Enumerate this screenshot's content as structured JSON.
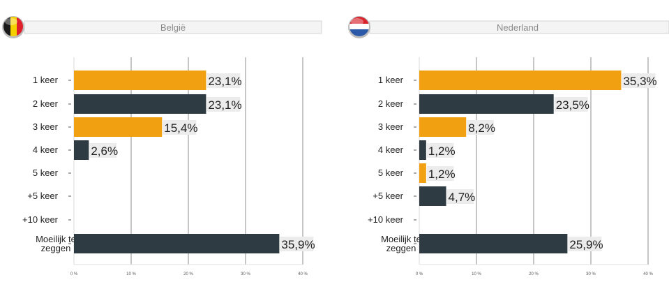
{
  "chart_data": [
    {
      "type": "bar",
      "orientation": "horizontal",
      "title": "België",
      "flag": "belgium-flag-icon",
      "categories": [
        "1 keer",
        "2 keer",
        "3 keer",
        "4 keer",
        "5 keer",
        "+5 keer",
        "+10 keer",
        "Moeilijk te zeggen"
      ],
      "values": [
        23.1,
        23.1,
        15.4,
        2.6,
        null,
        null,
        null,
        35.9
      ],
      "value_labels": [
        "23,1%",
        "23,1%",
        "15,4%",
        "2,6%",
        "",
        "",
        "",
        "35,9%"
      ],
      "xlim": [
        0,
        40
      ],
      "xticks": [
        "0 %",
        "10 %",
        "20 %",
        "30 %",
        "40 %"
      ],
      "grid": true,
      "colors": [
        "#f0a010",
        "#2f3b42",
        "#f0a010",
        "#2f3b42",
        "#f0a010",
        "#2f3b42",
        "#f0a010",
        "#2f3b42"
      ]
    },
    {
      "type": "bar",
      "orientation": "horizontal",
      "title": "Nederland",
      "flag": "netherlands-flag-icon",
      "categories": [
        "1 keer",
        "2 keer",
        "3 keer",
        "4 keer",
        "5 keer",
        "+5 keer",
        "+10 keer",
        "Moeilijk te zeggen"
      ],
      "values": [
        35.3,
        23.5,
        8.2,
        1.2,
        1.2,
        4.7,
        null,
        25.9
      ],
      "value_labels": [
        "35,3%",
        "23,5%",
        "8,2%",
        "1,2%",
        "1,2%",
        "4,7%",
        "",
        "25,9%"
      ],
      "xlim": [
        0,
        40
      ],
      "xticks": [
        "0 %",
        "10 %",
        "20 %",
        "30 %",
        "40 %"
      ],
      "grid": true,
      "colors": [
        "#f0a010",
        "#2f3b42",
        "#f0a010",
        "#2f3b42",
        "#f0a010",
        "#2f3b42",
        "#f0a010",
        "#2f3b42"
      ]
    }
  ]
}
